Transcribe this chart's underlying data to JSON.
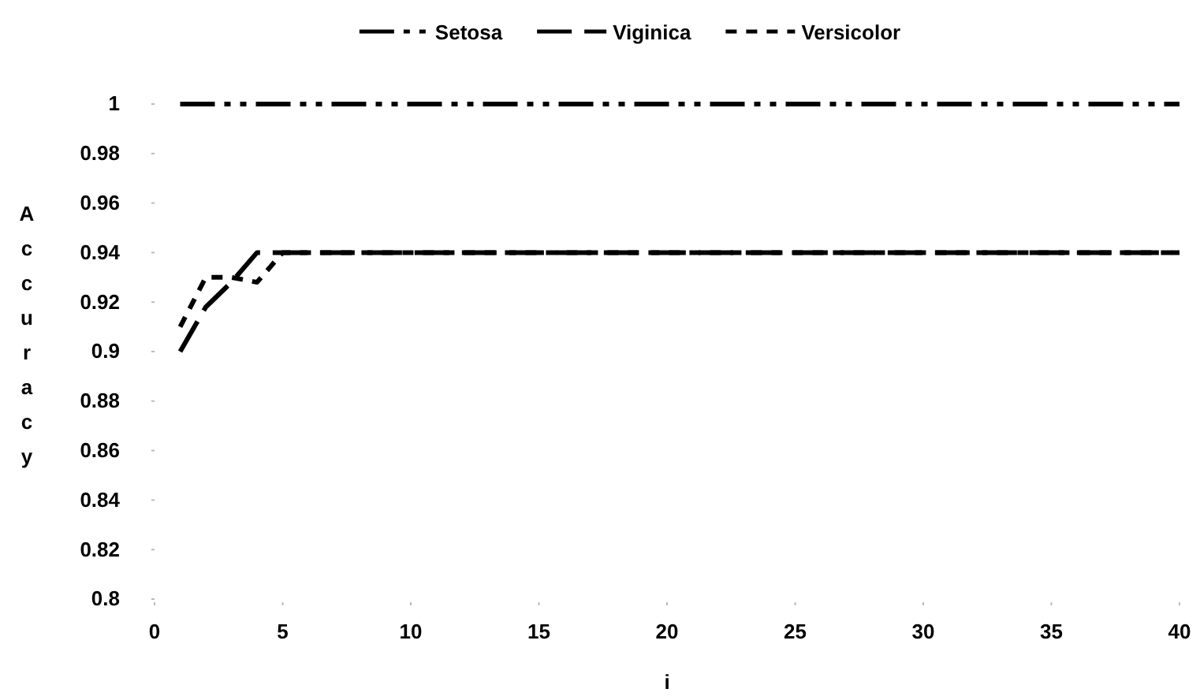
{
  "chart_data": {
    "type": "line",
    "xlabel": "i",
    "ylabel": "Accuracy",
    "xlim": [
      0,
      40
    ],
    "xticks": [
      0,
      5,
      10,
      15,
      20,
      25,
      30,
      35,
      40
    ],
    "ylim": [
      0.8,
      1
    ],
    "yticks": [
      0.8,
      {
        "value": 0.82,
        "label": "0.82"
      },
      {
        "value": 0.84,
        "label": "0.84"
      },
      {
        "value": 0.86,
        "label": "0.86"
      },
      {
        "value": 0.88,
        "label": "0.88"
      },
      0.9,
      {
        "value": 0.92,
        "label": "0.92"
      },
      {
        "value": 0.94,
        "label": "0.94"
      },
      {
        "value": 0.96,
        "label": "0.96"
      },
      {
        "value": 0.98,
        "label": "0.98"
      },
      1
    ],
    "grid": false,
    "legend": "top",
    "marker": "none",
    "series": [
      {
        "name": "Setosa",
        "color": "#000000",
        "line_style": "dashdot",
        "x": [
          1,
          2,
          3,
          4,
          5,
          10,
          15,
          20,
          25,
          30,
          35,
          40
        ],
        "values": [
          1,
          1,
          1,
          1,
          1,
          1,
          1,
          1,
          1,
          1,
          1,
          1
        ]
      },
      {
        "name": "Viginica",
        "color": "#000000",
        "line_style": "dashed",
        "x": [
          1,
          2,
          3,
          4,
          5,
          40
        ],
        "values": [
          0.9,
          0.918,
          0.928,
          0.94,
          0.94,
          0.94
        ]
      },
      {
        "name": "Versicolor",
        "color": "#000000",
        "line_style": "dotted",
        "x": [
          1,
          2,
          3,
          4,
          5,
          40
        ],
        "values": [
          0.91,
          0.93,
          0.93,
          0.928,
          0.94,
          0.94
        ]
      }
    ]
  }
}
